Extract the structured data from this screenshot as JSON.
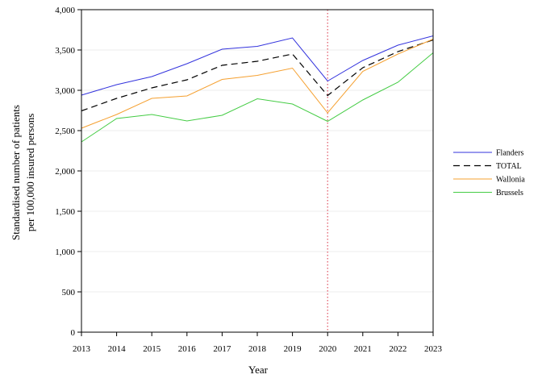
{
  "chart_data": {
    "type": "line",
    "xlabel": "Year",
    "ylabel_lines": [
      "Standardised number of patients",
      "per 100,000 insured persons"
    ],
    "x": [
      2013,
      2014,
      2015,
      2016,
      2017,
      2018,
      2019,
      2020,
      2021,
      2022,
      2023
    ],
    "xlim": [
      2013,
      2023
    ],
    "ylim": [
      0,
      4000
    ],
    "y_ticks": [
      0,
      500,
      1000,
      1500,
      2000,
      2500,
      3000,
      3500,
      4000
    ],
    "y_tick_labels": [
      "0",
      "500",
      "1,000",
      "1,500",
      "2,000",
      "2,500",
      "3,000",
      "3,500",
      "4,000"
    ],
    "x_tick_labels": [
      "2013",
      "2014",
      "2015",
      "2016",
      "2017",
      "2018",
      "2019",
      "2020",
      "2021",
      "2022",
      "2023"
    ],
    "grid": "horizontal",
    "reference_line": {
      "x": 2020,
      "style": "dotted",
      "color": "#e05060"
    },
    "legend_position": "right",
    "series": [
      {
        "name": "Flanders",
        "color": "#3333dd",
        "dash": "solid",
        "values": [
          2940,
          3070,
          3170,
          3330,
          3510,
          3545,
          3650,
          3115,
          3370,
          3560,
          3675
        ]
      },
      {
        "name": "TOTAL",
        "color": "#000000",
        "dash": "dashed",
        "values": [
          2745,
          2900,
          3030,
          3130,
          3310,
          3360,
          3450,
          2935,
          3280,
          3480,
          3625
        ]
      },
      {
        "name": "Wallonia",
        "color": "#f5a030",
        "dash": "solid",
        "values": [
          2530,
          2700,
          2900,
          2930,
          3135,
          3185,
          3275,
          2720,
          3235,
          3450,
          3635
        ]
      },
      {
        "name": "Brussels",
        "color": "#44cc44",
        "dash": "solid",
        "values": [
          2360,
          2650,
          2700,
          2620,
          2690,
          2895,
          2830,
          2615,
          2880,
          3100,
          3465
        ]
      }
    ]
  }
}
